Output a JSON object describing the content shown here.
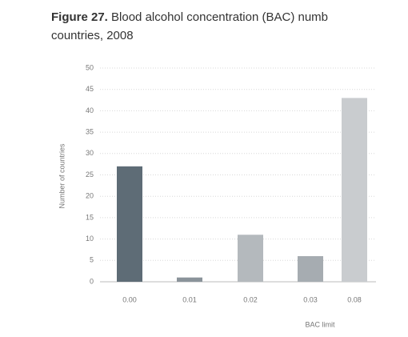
{
  "chart_data": {
    "type": "bar",
    "title_prefix": "Figure 27.",
    "title": "Blood alcohol concentration (BAC) numb",
    "title_line2": "countries, 2008",
    "x_label": "BAC limit",
    "y_label": "Number of countries",
    "categories": [
      "0.00",
      "0.01",
      "0.02",
      "0.03",
      "0.08"
    ],
    "values": [
      27,
      1,
      11,
      6,
      43
    ],
    "colors": [
      "#5e6c76",
      "#8a939a",
      "#b4b9bd",
      "#a6acb1",
      "#c9cccf"
    ],
    "ylim": [
      0,
      50
    ],
    "yticks": [
      0,
      5,
      10,
      15,
      20,
      25,
      30,
      35,
      40,
      45,
      50
    ],
    "grid": true
  }
}
